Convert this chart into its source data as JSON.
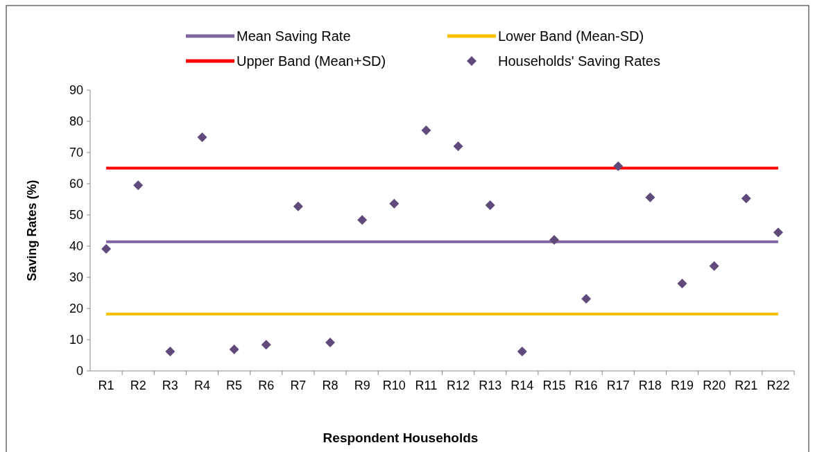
{
  "chart_data": {
    "type": "scatter",
    "xlabel": "Respondent Households",
    "ylabel": "Saving Rates (%)",
    "categories": [
      "R1",
      "R2",
      "R3",
      "R4",
      "R5",
      "R6",
      "R7",
      "R8",
      "R9",
      "R10",
      "R11",
      "R12",
      "R13",
      "R14",
      "R15",
      "R16",
      "R17",
      "R18",
      "R19",
      "R20",
      "R21",
      "R22"
    ],
    "ylim": [
      0,
      90
    ],
    "yticks": [
      0,
      10,
      20,
      30,
      40,
      50,
      60,
      70,
      80,
      90
    ],
    "grid": false,
    "legend": "top",
    "series": [
      {
        "name": "Mean Saving Rate",
        "type": "line",
        "color": "#8064a2",
        "marker": "none",
        "values": [
          41.4,
          41.4,
          41.4,
          41.4,
          41.4,
          41.4,
          41.4,
          41.4,
          41.4,
          41.4,
          41.4,
          41.4,
          41.4,
          41.4,
          41.4,
          41.4,
          41.4,
          41.4,
          41.4,
          41.4,
          41.4,
          41.4
        ]
      },
      {
        "name": "Lower Band (Mean-SD)",
        "type": "line",
        "color": "#ffc000",
        "marker": "none",
        "values": [
          18.2,
          18.2,
          18.2,
          18.2,
          18.2,
          18.2,
          18.2,
          18.2,
          18.2,
          18.2,
          18.2,
          18.2,
          18.2,
          18.2,
          18.2,
          18.2,
          18.2,
          18.2,
          18.2,
          18.2,
          18.2,
          18.2
        ]
      },
      {
        "name": "Upper Band (Mean+SD)",
        "type": "line",
        "color": "#ff0000",
        "marker": "none",
        "values": [
          65,
          65,
          65,
          65,
          65,
          65,
          65,
          65,
          65,
          65,
          65,
          65,
          65,
          65,
          65,
          65,
          65,
          65,
          65,
          65,
          65,
          65
        ]
      },
      {
        "name": "Households' Saving Rates",
        "color": "#604a7b",
        "marker": "diamond",
        "values": [
          39.1,
          59.5,
          6.2,
          74.9,
          6.9,
          8.4,
          52.7,
          9.1,
          48.4,
          53.6,
          77.1,
          72,
          53.1,
          6.2,
          42,
          23.1,
          65.6,
          55.6,
          28,
          33.6,
          55.3,
          44.4
        ]
      }
    ]
  }
}
